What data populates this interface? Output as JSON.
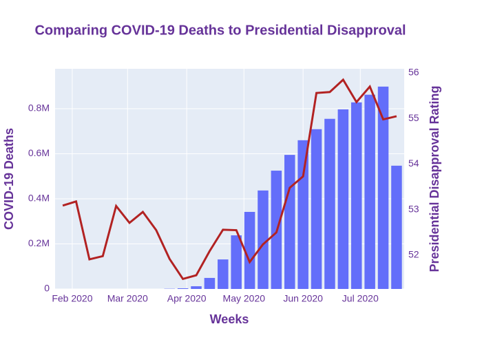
{
  "chart_data": {
    "type": "bar-line",
    "title": "Comparing COVID-19 Deaths to Presidential Disapproval",
    "x_label": "Weeks",
    "y_label": "COVID-19 Deaths",
    "y2_label": "Presidential Disapproval Rating",
    "x": [
      "2020-01-27",
      "2020-02-03",
      "2020-02-10",
      "2020-02-17",
      "2020-02-24",
      "2020-03-02",
      "2020-03-09",
      "2020-03-16",
      "2020-03-23",
      "2020-03-30",
      "2020-04-06",
      "2020-04-13",
      "2020-04-20",
      "2020-04-27",
      "2020-05-04",
      "2020-05-11",
      "2020-05-18",
      "2020-05-25",
      "2020-06-01",
      "2020-06-08",
      "2020-06-15",
      "2020-06-22",
      "2020-06-29",
      "2020-07-06",
      "2020-07-13",
      "2020-07-20"
    ],
    "xlim": [
      "2020-01-23",
      "2020-07-24"
    ],
    "xticks": [
      {
        "value": "2020-02-01",
        "label": "Feb 2020"
      },
      {
        "value": "2020-03-01",
        "label": "Mar 2020"
      },
      {
        "value": "2020-04-01",
        "label": "Apr 2020"
      },
      {
        "value": "2020-05-01",
        "label": "May 2020"
      },
      {
        "value": "2020-06-01",
        "label": "Jun 2020"
      },
      {
        "value": "2020-07-01",
        "label": "Jul 2020"
      }
    ],
    "ylim": [
      0,
      977000
    ],
    "yticks": [
      0,
      {
        "value": 200000,
        "label": "0.2M"
      },
      {
        "value": 400000,
        "label": "0.4M"
      },
      {
        "value": 600000,
        "label": "0.6M"
      },
      {
        "value": 800000,
        "label": "0.8M"
      }
    ],
    "y2lim": [
      51.26,
      56.09
    ],
    "y2ticks": [
      52,
      53,
      54,
      55,
      56
    ],
    "grid": true,
    "series": [
      {
        "name": "COVID-19 Deaths",
        "type": "bar",
        "color": "#636efa",
        "values": [
          0,
          0,
          0,
          0,
          0,
          0,
          0,
          0,
          1000,
          3000,
          12000,
          49000,
          131000,
          238000,
          342000,
          437000,
          525000,
          595000,
          660000,
          709000,
          755000,
          797000,
          828000,
          862000,
          898000,
          547000
        ]
      },
      {
        "name": "Presidential Disapproval Rating",
        "type": "line",
        "axis": "y2",
        "color": "#b22222",
        "values": [
          53.09,
          53.18,
          51.91,
          51.98,
          53.08,
          52.71,
          52.95,
          52.55,
          51.92,
          51.48,
          51.56,
          52.09,
          52.56,
          52.55,
          51.85,
          52.24,
          52.5,
          53.48,
          53.73,
          55.56,
          55.58,
          55.85,
          55.36,
          55.7,
          54.98,
          55.05
        ]
      }
    ]
  }
}
